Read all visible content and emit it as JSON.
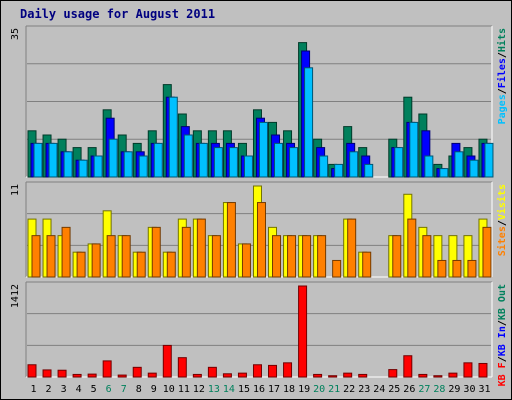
{
  "chart_data": {
    "type": "bar",
    "title": "Daily usage for August 2011",
    "categories": [
      "1",
      "2",
      "3",
      "4",
      "5",
      "6",
      "7",
      "8",
      "9",
      "10",
      "11",
      "12",
      "13",
      "14",
      "15",
      "16",
      "17",
      "18",
      "19",
      "20",
      "21",
      "22",
      "23",
      "24",
      "25",
      "26",
      "27",
      "28",
      "29",
      "30",
      "31"
    ],
    "weekend_days": [
      "6",
      "7",
      "13",
      "14",
      "20",
      "21",
      "27",
      "28"
    ],
    "colors": {
      "background": "#c0c0c0",
      "plot": "#c0c0c0",
      "hits": "#00805c",
      "files": "#0000ff",
      "pages": "#00c0ff",
      "visits": "#ffff00",
      "sites": "#ff8000",
      "kbin": "#0000ff",
      "kbout": "#00805c",
      "kbf": "#ff0000",
      "title": "#000080",
      "weekend_label": "#00805c",
      "weekday_label": "#000000"
    },
    "panels": [
      {
        "name": "hits-files-pages",
        "max_label": "35",
        "ylim": [
          0,
          35
        ],
        "legend": [
          {
            "label": "Pages",
            "color": "#00c0ff"
          },
          {
            "label": "Files",
            "color": "#0000ff"
          },
          {
            "label": "Hits",
            "color": "#00805c"
          }
        ],
        "legend_sep": "/",
        "series": [
          {
            "name": "Hits",
            "color": "#00805c",
            "values": [
              11,
              10,
              9,
              7,
              7,
              16,
              10,
              8,
              11,
              22,
              15,
              11,
              11,
              11,
              8,
              16,
              13,
              11,
              32,
              9,
              3,
              12,
              7,
              0,
              9,
              19,
              15,
              3,
              5,
              7,
              9
            ]
          },
          {
            "name": "Files",
            "color": "#0000ff",
            "values": [
              8,
              8,
              6,
              4,
              5,
              14,
              6,
              6,
              8,
              19,
              12,
              8,
              8,
              8,
              5,
              14,
              10,
              8,
              30,
              7,
              2,
              8,
              5,
              0,
              7,
              13,
              11,
              2,
              8,
              5,
              8
            ]
          },
          {
            "name": "Pages",
            "color": "#00c0ff",
            "values": [
              8,
              8,
              6,
              4,
              5,
              9,
              6,
              5,
              8,
              19,
              10,
              8,
              7,
              7,
              5,
              13,
              8,
              7,
              26,
              5,
              3,
              6,
              3,
              0,
              7,
              13,
              5,
              2,
              6,
              4,
              8
            ]
          }
        ]
      },
      {
        "name": "visits-sites",
        "max_label": "11",
        "ylim": [
          0,
          11
        ],
        "legend": [
          {
            "label": "Sites",
            "color": "#ff8000"
          },
          {
            "label": "Visits",
            "color": "#ffff00"
          }
        ],
        "legend_sep": "/",
        "series": [
          {
            "name": "Visits",
            "color": "#ffff00",
            "values": [
              7,
              7,
              5,
              3,
              4,
              8,
              5,
              3,
              6,
              3,
              7,
              7,
              5,
              9,
              4,
              11,
              6,
              5,
              5,
              5,
              0,
              7,
              3,
              0,
              5,
              10,
              6,
              5,
              5,
              5,
              7
            ]
          },
          {
            "name": "Sites",
            "color": "#ff8000",
            "values": [
              5,
              5,
              6,
              3,
              4,
              5,
              5,
              3,
              6,
              3,
              6,
              7,
              5,
              9,
              4,
              9,
              5,
              5,
              5,
              5,
              2,
              7,
              3,
              0,
              5,
              7,
              5,
              2,
              2,
              2,
              6
            ]
          }
        ]
      },
      {
        "name": "kb",
        "max_label": "1412",
        "ylim": [
          0,
          1412
        ],
        "legend": [
          {
            "label": "KB F",
            "color": "#ff0000"
          },
          {
            "label": "KB In",
            "color": "#0000ff"
          },
          {
            "label": "KB Out",
            "color": "#00805c"
          }
        ],
        "legend_sep": "/",
        "series": [
          {
            "name": "KB F",
            "color": "#ff0000",
            "values": [
              190,
              110,
              105,
              40,
              45,
              250,
              30,
              150,
              60,
              490,
              300,
              40,
              150,
              50,
              60,
              190,
              180,
              220,
              1412,
              40,
              20,
              60,
              40,
              0,
              115,
              330,
              40,
              20,
              60,
              220,
              210
            ]
          }
        ]
      }
    ]
  }
}
